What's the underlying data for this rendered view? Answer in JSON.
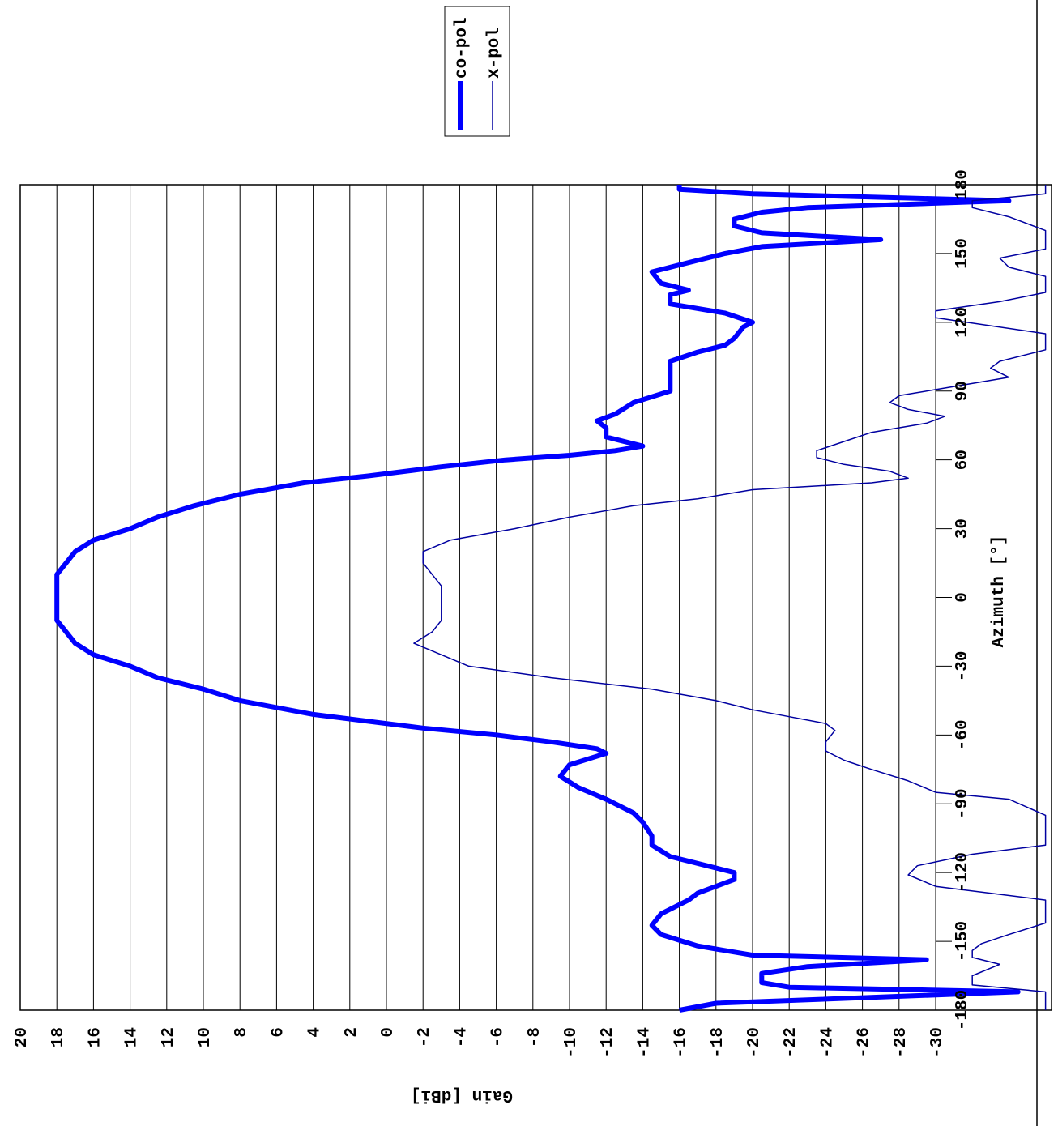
{
  "chart_data": {
    "type": "line",
    "xlabel": "Azimuth [°]",
    "ylabel": "Gain [dBi]",
    "xlim": [
      -180,
      180
    ],
    "xticks": [
      -180,
      -150,
      -120,
      -90,
      -60,
      -30,
      0,
      30,
      60,
      90,
      120,
      150,
      180
    ],
    "ylim": [
      20,
      -36
    ],
    "yticks": [
      20,
      18,
      16,
      14,
      12,
      10,
      8,
      6,
      4,
      2,
      0,
      -2,
      -4,
      -6,
      -8,
      -10,
      -12,
      -14,
      -16,
      -18,
      -20,
      -22,
      -24,
      -26,
      -28,
      -30
    ],
    "grid": true,
    "series": [
      {
        "name": "co-pol",
        "color": "#0000ff",
        "x": [
          -180,
          -177,
          -172,
          -170,
          -168,
          -164,
          -161,
          -158,
          -156,
          -152,
          -147,
          -143,
          -138,
          -132,
          -129,
          -123,
          -120,
          -117,
          -113,
          -108,
          -104,
          -98,
          -94,
          -88,
          -83,
          -78,
          -73,
          -68,
          -66,
          -63,
          -60,
          -57,
          -54,
          -51,
          -48,
          -45,
          -40,
          -35,
          -30,
          -25,
          -20,
          -10,
          0,
          10,
          20,
          25,
          30,
          35,
          40,
          45,
          50,
          53,
          57,
          60,
          62,
          64,
          66,
          70,
          74,
          77,
          80,
          85,
          90,
          95,
          100,
          103,
          107,
          110,
          113,
          118,
          120,
          124,
          128,
          132,
          134,
          137,
          142,
          146,
          150,
          153,
          156,
          159,
          162,
          165,
          168,
          170,
          173,
          176,
          178,
          180
        ],
        "values": [
          -16,
          -18,
          -34.5,
          -22,
          -20.5,
          -20.5,
          -23,
          -29.5,
          -20,
          -17,
          -15,
          -14.5,
          -15,
          -16.5,
          -17,
          -19,
          -19,
          -17.5,
          -15.5,
          -14.5,
          -14.5,
          -14,
          -13.5,
          -12,
          -10.5,
          -9.5,
          -10,
          -12,
          -11.5,
          -9,
          -6,
          -2,
          1,
          4,
          6,
          8,
          10,
          12.5,
          14,
          16,
          17,
          18,
          18,
          18,
          17,
          16,
          14,
          12.5,
          10.5,
          8,
          4.5,
          1,
          -3,
          -6.5,
          -10,
          -12.5,
          -14,
          -12,
          -12,
          -11.5,
          -12.5,
          -13.5,
          -15.5,
          -15.5,
          -15.5,
          -15.5,
          -17,
          -18.5,
          -19,
          -19.5,
          -20,
          -18.5,
          -15.5,
          -15.5,
          -16.5,
          -15,
          -14.5,
          -16.5,
          -18.5,
          -20.5,
          -27,
          -20.5,
          -19,
          -19,
          -20.5,
          -23,
          -34,
          -20,
          -16,
          -16
        ]
      },
      {
        "name": "x-pol",
        "color": "#0000a0",
        "x": [
          -180,
          -172,
          -169,
          -165,
          -160,
          -157,
          -154,
          -151,
          -147,
          -142,
          -132,
          -126,
          -121,
          -117,
          -112,
          -108,
          -95,
          -88,
          -85,
          -80,
          -75,
          -71,
          -67,
          -63,
          -58,
          -55,
          -52,
          -49,
          -45,
          -40,
          -35,
          -30,
          -25,
          -20,
          -15,
          -10,
          -5,
          0,
          5,
          10,
          15,
          20,
          25,
          30,
          35,
          40,
          43,
          47,
          50,
          52,
          55,
          58,
          61,
          64,
          68,
          72,
          76,
          79,
          82,
          85,
          88,
          92,
          96,
          100,
          103,
          108,
          115,
          122,
          125,
          129,
          133,
          140,
          144,
          148,
          152,
          160,
          166,
          170,
          173,
          176,
          180
        ],
        "values": [
          -36,
          -36,
          -32,
          -32,
          -33.5,
          -32,
          -32,
          -32.5,
          -34,
          -36,
          -36,
          -30,
          -28.5,
          -29,
          -32,
          -36,
          -36,
          -34,
          -30,
          -28.5,
          -26.5,
          -25,
          -24,
          -24,
          -24.5,
          -24,
          -22,
          -20,
          -18,
          -14.5,
          -9,
          -4.5,
          -3,
          -1.5,
          -2.5,
          -3,
          -3,
          -3,
          -3,
          -2.5,
          -2,
          -2,
          -3.5,
          -7,
          -10,
          -13.5,
          -17,
          -20,
          -26.5,
          -28.5,
          -27.5,
          -25,
          -23.5,
          -23.5,
          -25,
          -26.5,
          -29.5,
          -30.5,
          -28.5,
          -27.5,
          -28,
          -31,
          -34,
          -33,
          -33.5,
          -36,
          -36,
          -30,
          -30,
          -33.5,
          -36,
          -36,
          -34,
          -33.5,
          -36,
          -36,
          -34,
          -32,
          -32,
          -36,
          -36
        ]
      }
    ]
  }
}
